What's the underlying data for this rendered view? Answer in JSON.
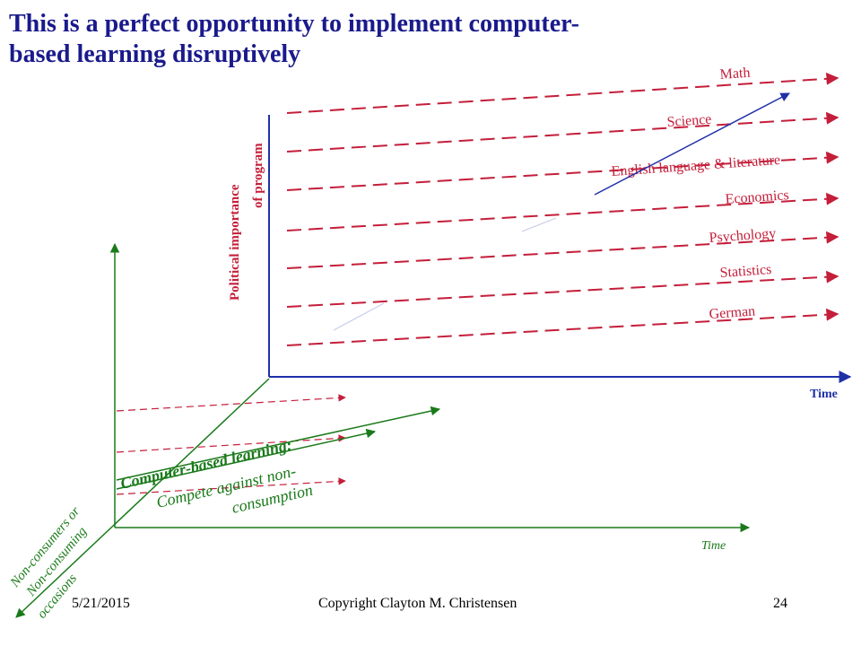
{
  "slide": {
    "title_line1": "This is a perfect opportunity to implement computer-",
    "title_line2": "based learning disruptively"
  },
  "upper_plot": {
    "y_axis_label_line1": "Political importance",
    "y_axis_label_line2": "of program",
    "x_axis_label": "Time",
    "programs": [
      "Math",
      "Science",
      "English language & literature",
      "Economics",
      "Psychology",
      "Statistics",
      "German"
    ]
  },
  "lower_plot": {
    "x_axis_label": "Time",
    "z_axis_label_line1": "Non-consumers or",
    "z_axis_label_line2": "Non-consuming",
    "z_axis_label_line3": "occasions",
    "cbl_title": "Computer-based learning:",
    "cbl_sub_line1": "Compete against non-",
    "cbl_sub_line2": "consumption"
  },
  "footer": {
    "date": "5/21/2015",
    "copyright": "Copyright Clayton M. Christensen",
    "page_number": "24"
  },
  "colors": {
    "title": "#1a1a8c",
    "program_line": "#c41e3a",
    "trajectory": "#1f2fa8",
    "lower_axes": "#1a7a1a"
  }
}
